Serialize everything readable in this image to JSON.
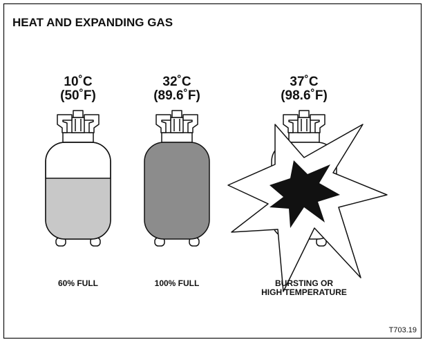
{
  "title": "HEAT AND EXPANDING GAS",
  "cylinders": [
    {
      "temp_c": "10˚C",
      "temp_f": "(50˚F)",
      "label": [
        "60% FULL"
      ]
    },
    {
      "temp_c": "32˚C",
      "temp_f": "(89.6˚F)",
      "label": [
        "100% FULL"
      ]
    },
    {
      "temp_c": "37˚C",
      "temp_f": "(98.6˚F)",
      "label": [
        "BURSTING OR",
        "HIGH TEMPERATURE"
      ]
    }
  ],
  "figure_id": "T703.19"
}
